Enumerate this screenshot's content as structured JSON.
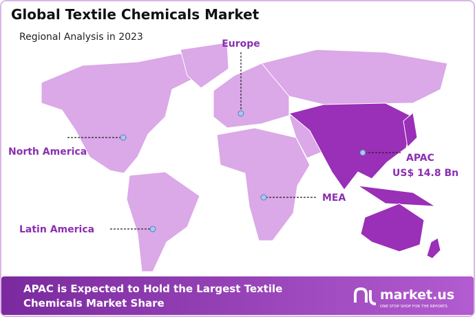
{
  "header": {
    "title": "Global Textile Chemicals Market",
    "subtitle": "Regional Analysis in 2023"
  },
  "regions": [
    {
      "label": "Europe"
    },
    {
      "label": "North America"
    },
    {
      "label": "APAC",
      "value": "US$ 14.8 Bn"
    },
    {
      "label": "MEA"
    },
    {
      "label": "Latin America"
    }
  ],
  "footer": {
    "lines": [
      "APAC is Expected to Hold the Largest Textile",
      "Chemicals Market Share"
    ],
    "brand": "market.us",
    "tagline": "ONE STOP SHOP FOR THE REPORTS"
  }
}
